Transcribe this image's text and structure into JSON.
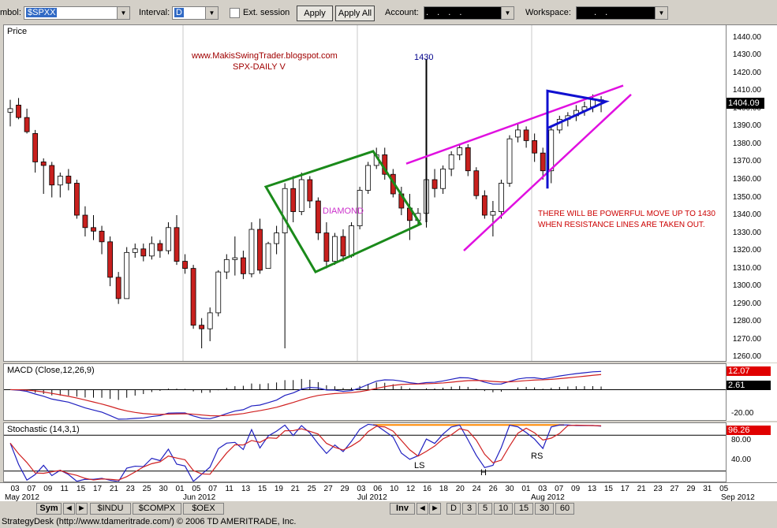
{
  "toolbar": {
    "symbol_label": "mbol:",
    "symbol_value": "$SPXX",
    "interval_label": "Interval:",
    "interval_value": "D",
    "ext_session_label": "Ext. session",
    "apply_label": "Apply",
    "apply_all_label": "Apply All",
    "account_label": "Account:",
    "account_value": ". . . .",
    "workspace_label": "Workspace:",
    "workspace_value": ". ."
  },
  "price_panel": {
    "title": "Price",
    "watermark_url": "www.MakisSwingTrader.blogspot.com",
    "watermark_sub": "SPX-DAILY V",
    "target_label": "1430",
    "diamond_label": "DIAMOND",
    "note_line1": "THERE WILL BE POWERFUL MOVE UP TO 1430",
    "note_line2": "WHEN RESISTANCE LINES ARE TAKEN OUT.",
    "last_price": "1404.09",
    "y_ticks": [
      "1440.00",
      "1430.00",
      "1420.00",
      "1410.00",
      "1400.00",
      "1390.00",
      "1380.00",
      "1370.00",
      "1360.00",
      "1350.00",
      "1340.00",
      "1330.00",
      "1320.00",
      "1310.00",
      "1300.00",
      "1290.00",
      "1280.00",
      "1270.00",
      "1260.00"
    ]
  },
  "macd_panel": {
    "title": "MACD (Close,12,26,9)",
    "value1": "12.07",
    "value2": "2.61",
    "tick_neg": "-20.00"
  },
  "stoch_panel": {
    "title": "Stochastic (14,3,1)",
    "value": "96.26",
    "tick_80": "80.00",
    "tick_40": "40.00",
    "label_ls": "LS",
    "label_h": "H",
    "label_rs": "RS"
  },
  "x_axis": {
    "day_labels": [
      "03",
      "07",
      "09",
      "11",
      "15",
      "17",
      "21",
      "23",
      "25",
      "30",
      "01",
      "05",
      "07",
      "11",
      "13",
      "15",
      "19",
      "21",
      "25",
      "27",
      "29",
      "03",
      "06",
      "10",
      "12",
      "16",
      "18",
      "20",
      "24",
      "26",
      "30",
      "01",
      "03",
      "07",
      "09",
      "13",
      "15",
      "17",
      "21",
      "23",
      "27",
      "29",
      "31",
      "05"
    ],
    "month_labels": [
      "May 2012",
      "Jun 2012",
      "Jul 2012",
      "Aug 2012",
      "Sep 2012"
    ]
  },
  "bottom_bar": {
    "sym_label": "Sym",
    "tabs": [
      "$INDU",
      "$COMPX",
      "$OEX"
    ],
    "inv_label": "Inv",
    "intervals": [
      "D",
      "3",
      "5",
      "10",
      "15",
      "30",
      "60"
    ]
  },
  "status_text": "StrategyDesk (http://www.tdameritrade.com/) © 2006 TD AMERITRADE, Inc.",
  "chart_data": {
    "type": "candlestick",
    "title": "SPX-DAILY V",
    "ylim": [
      1257,
      1447
    ],
    "candles": [
      [
        1398,
        1405,
        1390,
        1400
      ],
      [
        1402,
        1406,
        1394,
        1395
      ],
      [
        1395,
        1400,
        1386,
        1387
      ],
      [
        1386,
        1388,
        1364,
        1370
      ],
      [
        1370,
        1372,
        1352,
        1368
      ],
      [
        1368,
        1370,
        1350,
        1357
      ],
      [
        1357,
        1364,
        1350,
        1362
      ],
      [
        1362,
        1366,
        1354,
        1358
      ],
      [
        1358,
        1360,
        1338,
        1340
      ],
      [
        1340,
        1345,
        1328,
        1333
      ],
      [
        1333,
        1340,
        1326,
        1331
      ],
      [
        1331,
        1334,
        1318,
        1325
      ],
      [
        1325,
        1328,
        1300,
        1305
      ],
      [
        1305,
        1308,
        1290,
        1293
      ],
      [
        1293,
        1322,
        1293,
        1319
      ],
      [
        1319,
        1324,
        1316,
        1321
      ],
      [
        1321,
        1324,
        1314,
        1317
      ],
      [
        1317,
        1328,
        1315,
        1324
      ],
      [
        1324,
        1326,
        1316,
        1320
      ],
      [
        1320,
        1336,
        1318,
        1333
      ],
      [
        1333,
        1340,
        1312,
        1314
      ],
      [
        1314,
        1318,
        1307,
        1310
      ],
      [
        1310,
        1312,
        1276,
        1278
      ],
      [
        1278,
        1282,
        1265,
        1276
      ],
      [
        1276,
        1288,
        1269,
        1285
      ],
      [
        1285,
        1309,
        1283,
        1308
      ],
      [
        1308,
        1318,
        1304,
        1315
      ],
      [
        1315,
        1328,
        1306,
        1316
      ],
      [
        1316,
        1320,
        1304,
        1307
      ],
      [
        1307,
        1336,
        1305,
        1332
      ],
      [
        1332,
        1338,
        1307,
        1309
      ],
      [
        1310,
        1325,
        1310,
        1324
      ],
      [
        1324,
        1334,
        1318,
        1330
      ],
      [
        1330,
        1358,
        1265,
        1355
      ],
      [
        1355,
        1362,
        1336,
        1342
      ],
      [
        1342,
        1364,
        1340,
        1360
      ],
      [
        1360,
        1362,
        1344,
        1348
      ],
      [
        1348,
        1350,
        1326,
        1330
      ],
      [
        1330,
        1336,
        1310,
        1314
      ],
      [
        1314,
        1330,
        1312,
        1328
      ],
      [
        1328,
        1332,
        1314,
        1317
      ],
      [
        1317,
        1336,
        1316,
        1334
      ],
      [
        1334,
        1356,
        1332,
        1354
      ],
      [
        1354,
        1370,
        1352,
        1368
      ],
      [
        1368,
        1378,
        1366,
        1374
      ],
      [
        1374,
        1378,
        1360,
        1363
      ],
      [
        1363,
        1366,
        1350,
        1352
      ],
      [
        1352,
        1356,
        1340,
        1344
      ],
      [
        1344,
        1352,
        1326,
        1337
      ],
      [
        1337,
        1344,
        1334,
        1341
      ],
      [
        1341,
        1366,
        1333,
        1360
      ],
      [
        1360,
        1366,
        1350,
        1355
      ],
      [
        1355,
        1368,
        1352,
        1366
      ],
      [
        1366,
        1376,
        1362,
        1374
      ],
      [
        1374,
        1380,
        1371,
        1378
      ],
      [
        1378,
        1380,
        1362,
        1365
      ],
      [
        1365,
        1367,
        1349,
        1351
      ],
      [
        1351,
        1354,
        1338,
        1340
      ],
      [
        1340,
        1348,
        1328,
        1342
      ],
      [
        1342,
        1360,
        1338,
        1358
      ],
      [
        1358,
        1385,
        1356,
        1383
      ],
      [
        1384,
        1392,
        1381,
        1388
      ],
      [
        1388,
        1390,
        1378,
        1382
      ],
      [
        1382,
        1386,
        1370,
        1375
      ],
      [
        1375,
        1378,
        1360,
        1365
      ],
      [
        1365,
        1390,
        1358,
        1388
      ],
      [
        1388,
        1396,
        1386,
        1394
      ],
      [
        1394,
        1398,
        1390,
        1396
      ],
      [
        1396,
        1402,
        1393,
        1399
      ],
      [
        1399,
        1404,
        1396,
        1401
      ],
      [
        1401,
        1408,
        1398,
        1405
      ],
      [
        1405,
        1407,
        1398,
        1404
      ]
    ],
    "macd": {
      "ylim": [
        -25,
        20
      ]
    },
    "stochastic": {
      "ylim": [
        0,
        100
      ]
    }
  }
}
